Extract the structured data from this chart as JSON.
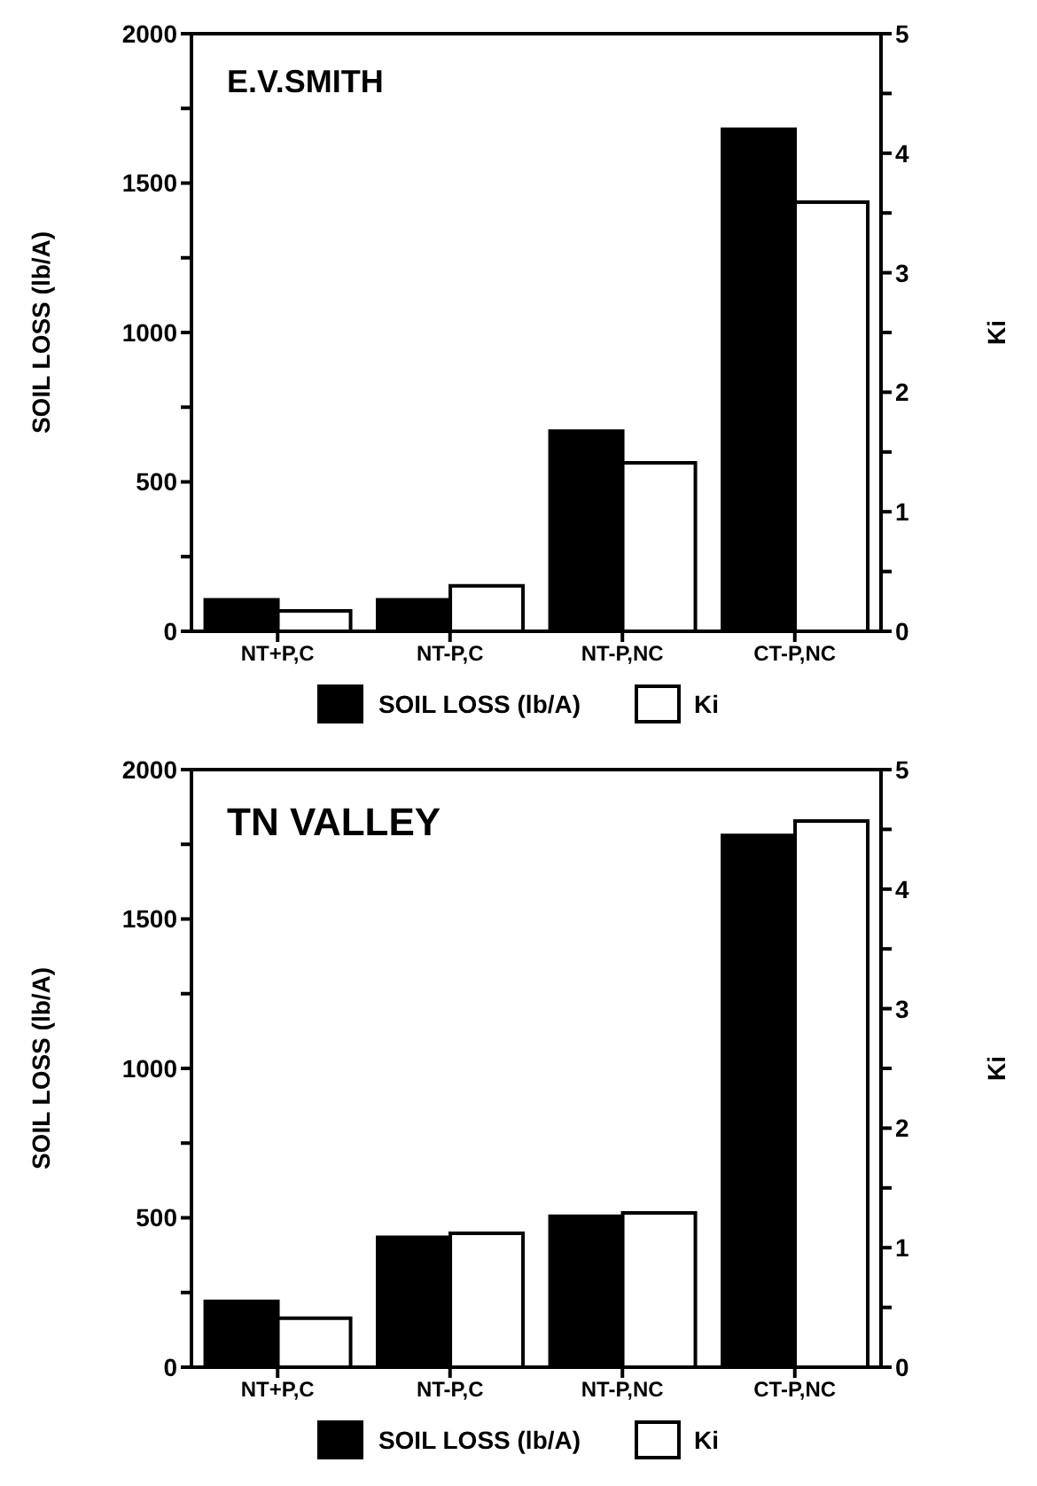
{
  "chart_data": [
    {
      "type": "bar",
      "title": "E.V.SMITH",
      "ylabel": "SOIL LOSS (lb/A)",
      "y2label": "Ki",
      "categories": [
        "NT+P,C",
        "NT-P,C",
        "NT-P,NC",
        "CT-P,NC"
      ],
      "series": [
        {
          "name": "SOIL LOSS (lb/A)",
          "color": "#000000",
          "values": [
            105,
            105,
            670,
            1680
          ]
        },
        {
          "name": "Ki",
          "color": "#ffffff",
          "axis": "y2",
          "values": [
            0.17,
            0.38,
            1.41,
            3.59
          ]
        }
      ],
      "ylim": [
        0,
        2000
      ],
      "yticks": [
        0,
        {
          "value": 250,
          "label": null
        },
        500,
        {
          "value": 750,
          "label": null
        },
        1000,
        {
          "value": 1250,
          "label": null
        },
        1500,
        {
          "value": 1750,
          "label": null
        },
        2000
      ],
      "y2lim": [
        0,
        5
      ],
      "y2ticks": [
        0,
        {
          "value": 0.5,
          "label": null
        },
        1,
        {
          "value": 1.5,
          "label": null
        },
        2,
        {
          "value": 2.5,
          "label": null
        },
        3,
        {
          "value": 3.5,
          "label": null
        },
        4,
        {
          "value": 4.5,
          "label": null
        },
        5
      ],
      "legend": "bottom",
      "grid": false
    },
    {
      "type": "bar",
      "title": "TN VALLEY",
      "ylabel": "SOIL LOSS (lb/A)",
      "y2label": "Ki",
      "categories": [
        "NT+P,C",
        "NT-P,C",
        "NT-P,NC",
        "CT-P,NC"
      ],
      "series": [
        {
          "name": "SOIL LOSS (lb/A)",
          "color": "#000000",
          "values": [
            220,
            435,
            505,
            1780
          ]
        },
        {
          "name": "Ki",
          "color": "#ffffff",
          "axis": "y2",
          "values": [
            0.41,
            1.12,
            1.29,
            4.57
          ]
        }
      ],
      "ylim": [
        0,
        2000
      ],
      "yticks": [
        0,
        {
          "value": 250,
          "label": null
        },
        500,
        {
          "value": 750,
          "label": null
        },
        1000,
        {
          "value": 1250,
          "label": null
        },
        1500,
        {
          "value": 1750,
          "label": null
        },
        2000
      ],
      "y2lim": [
        0,
        5
      ],
      "y2ticks": [
        0,
        {
          "value": 0.5,
          "label": null
        },
        1,
        {
          "value": 1.5,
          "label": null
        },
        2,
        {
          "value": 2.5,
          "label": null
        },
        3,
        {
          "value": 3.5,
          "label": null
        },
        4,
        {
          "value": 4.5,
          "label": null
        },
        5
      ],
      "legend": "bottom",
      "grid": false
    }
  ]
}
